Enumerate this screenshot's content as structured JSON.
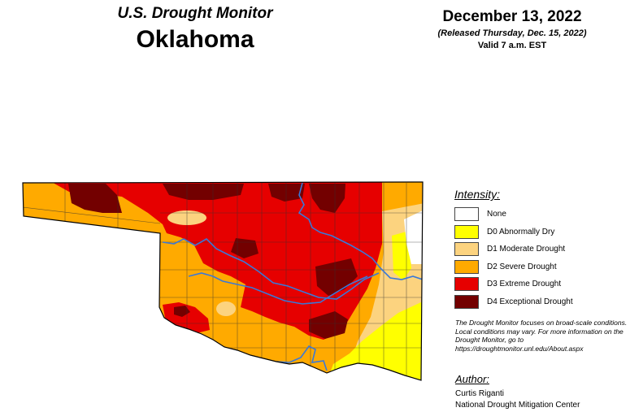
{
  "header": {
    "subtitle": "U.S. Drought Monitor",
    "state": "Oklahoma",
    "date": "December 13, 2022",
    "released": "(Released Thursday, Dec. 15, 2022)",
    "valid": "Valid 7 a.m. EST"
  },
  "legend": {
    "title": "Intensity:",
    "items": [
      {
        "label": "None",
        "color": "#ffffff"
      },
      {
        "label": "D0 Abnormally Dry",
        "color": "#ffff00"
      },
      {
        "label": "D1 Moderate Drought",
        "color": "#fcd37f"
      },
      {
        "label": "D2 Severe Drought",
        "color": "#ffaa00"
      },
      {
        "label": "D3 Extreme Drought",
        "color": "#e60000"
      },
      {
        "label": "D4 Exceptional Drought",
        "color": "#730000"
      }
    ]
  },
  "note": "The Drought Monitor focuses on broad-scale conditions. Local conditions may vary. For more information on the Drought Monitor, go to https://droughtmonitor.unl.edu/About.aspx",
  "author": {
    "title": "Author:",
    "name": "Curtis Riganti",
    "org": "National Drought Mitigation Center"
  },
  "map_colors": {
    "none": "#ffffff",
    "d0": "#ffff00",
    "d1": "#fcd37f",
    "d2": "#ffaa00",
    "d3": "#e60000",
    "d4": "#730000",
    "border": "#000000",
    "county_line": "#333333",
    "river": "#3a78d8"
  }
}
